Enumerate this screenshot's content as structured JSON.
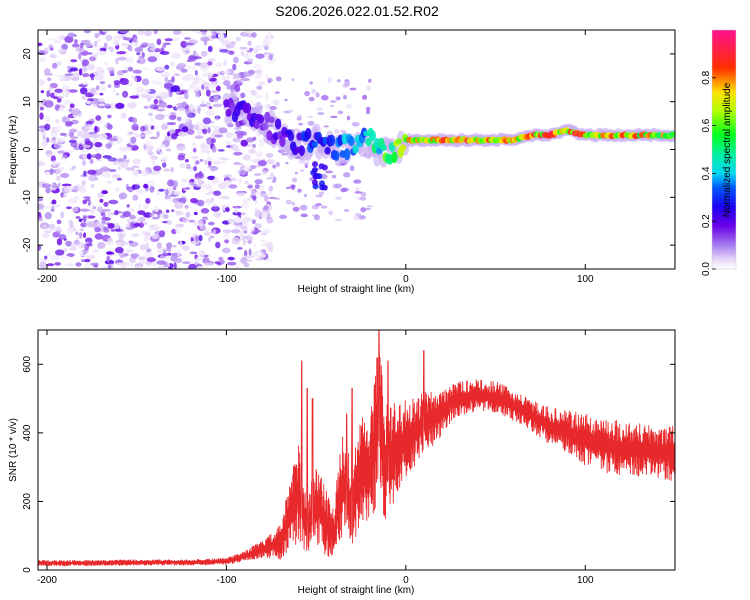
{
  "title": "S206.2026.022.01.52.R02",
  "chart_data": [
    {
      "type": "heatmap",
      "xlabel": "Height of straight line (km)",
      "ylabel": "Frequency (Hz)",
      "xlim": [
        -205,
        150
      ],
      "ylim": [
        -25,
        25
      ],
      "xticks": [
        -200,
        -100,
        0,
        100
      ],
      "xtick_labels": [
        "-200",
        "-100",
        "0",
        "100"
      ],
      "yticks": [
        -20,
        -10,
        0,
        10,
        20
      ],
      "ytick_labels": [
        "-20",
        "-10",
        "0",
        "10",
        "20"
      ],
      "colorbar": {
        "label": "Normalized spectral amplitude",
        "range": [
          0,
          1
        ],
        "ticks": [
          0.0,
          0.2,
          0.4,
          0.6,
          0.8
        ],
        "tick_labels": [
          "0.0",
          "0.2",
          "0.4",
          "0.6",
          "0.8"
        ]
      },
      "ridge": {
        "x": [
          -100,
          -90,
          -80,
          -70,
          -60,
          -50,
          -40,
          -30,
          -20,
          -15,
          -10,
          -5,
          0,
          10,
          20,
          30,
          40,
          50,
          60,
          70,
          80,
          90,
          100,
          110,
          120,
          130,
          140,
          150
        ],
        "freq": [
          9,
          8,
          6,
          3,
          1,
          2,
          0,
          1,
          2,
          0,
          -1,
          0,
          2,
          2,
          2,
          2,
          2,
          2,
          2,
          3,
          3,
          4,
          3,
          3,
          3,
          3,
          3,
          3
        ],
        "amplitude": [
          0.2,
          0.3,
          0.2,
          0.25,
          0.3,
          0.35,
          0.4,
          0.45,
          0.5,
          0.6,
          0.7,
          0.75,
          0.8,
          0.85,
          0.9,
          0.9,
          0.95,
          0.9,
          0.95,
          0.9,
          0.95,
          0.95,
          0.9,
          0.85,
          0.9,
          0.85,
          0.85,
          0.8
        ]
      }
    },
    {
      "type": "line",
      "xlabel": "Height of straight line (km)",
      "ylabel": "SNR (10 * v/v)",
      "xlim": [
        -205,
        150
      ],
      "ylim": [
        0,
        700
      ],
      "xticks": [
        -200,
        -100,
        0,
        100
      ],
      "xtick_labels": [
        "-200",
        "-100",
        "0",
        "100"
      ],
      "yticks": [
        0,
        200,
        400,
        600
      ],
      "ytick_labels": [
        "0",
        "200",
        "400",
        "600"
      ],
      "series": [
        {
          "name": "SNR",
          "color": "#e8292c",
          "x": [
            -205,
            -180,
            -150,
            -120,
            -100,
            -90,
            -80,
            -75,
            -70,
            -65,
            -60,
            -55,
            -50,
            -45,
            -40,
            -35,
            -30,
            -25,
            -20,
            -18,
            -15,
            -12,
            -10,
            -5,
            0,
            5,
            10,
            15,
            20,
            25,
            30,
            40,
            50,
            60,
            70,
            80,
            90,
            100,
            110,
            120,
            130,
            140,
            150
          ],
          "values": [
            20,
            20,
            22,
            22,
            25,
            40,
            60,
            70,
            80,
            150,
            230,
            120,
            200,
            140,
            110,
            260,
            180,
            300,
            280,
            350,
            450,
            300,
            330,
            350,
            380,
            400,
            430,
            440,
            460,
            490,
            500,
            510,
            505,
            480,
            450,
            420,
            400,
            380,
            365,
            355,
            350,
            345,
            340
          ],
          "spread": [
            8,
            8,
            8,
            8,
            10,
            15,
            25,
            35,
            50,
            100,
            150,
            80,
            120,
            100,
            90,
            150,
            120,
            160,
            150,
            200,
            250,
            180,
            160,
            140,
            120,
            100,
            90,
            80,
            70,
            60,
            50,
            45,
            45,
            45,
            45,
            55,
            65,
            75,
            80,
            80,
            80,
            80,
            80
          ],
          "peaks": [
            [
              -58,
              610
            ],
            [
              -55,
              530
            ],
            [
              -52,
              500
            ],
            [
              -30,
              530
            ],
            [
              -15,
              700
            ],
            [
              -10,
              610
            ],
            [
              10,
              640
            ],
            [
              -33,
              455
            ]
          ]
        }
      ]
    }
  ]
}
